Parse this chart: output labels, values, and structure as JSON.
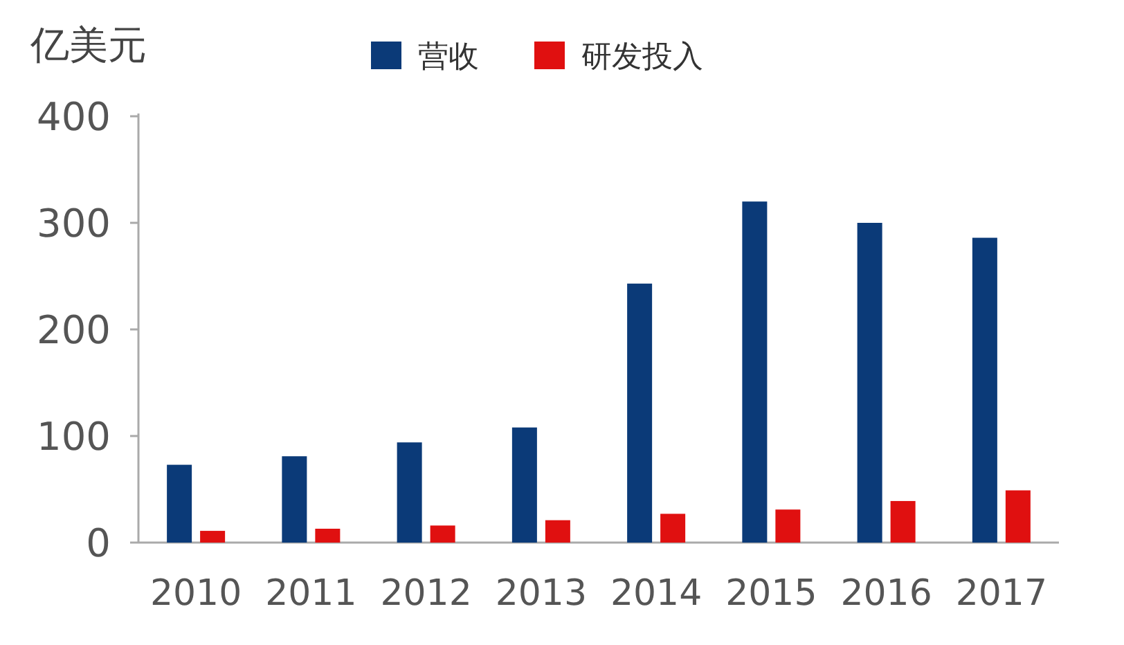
{
  "chart_data": {
    "type": "bar",
    "ylabel": "亿美元",
    "legend": "top",
    "categories": [
      "2010",
      "2011",
      "2012",
      "2013",
      "2014",
      "2015",
      "2016",
      "2017"
    ],
    "ylim": [
      0,
      400
    ],
    "yticks": [
      0,
      100,
      200,
      300,
      400
    ],
    "series": [
      {
        "name": "营收",
        "color": "#0b3a78",
        "values": [
          73,
          81,
          94,
          108,
          243,
          320,
          300,
          286
        ]
      },
      {
        "name": "研发投入",
        "color": "#e01010",
        "values": [
          11,
          13,
          16,
          21,
          27,
          31,
          39,
          49
        ]
      }
    ]
  }
}
